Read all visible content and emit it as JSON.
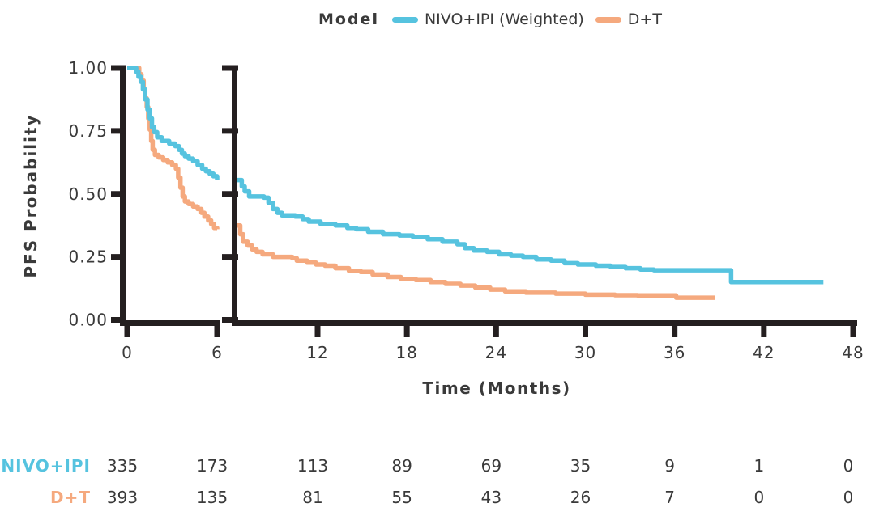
{
  "legend": {
    "title": "Model",
    "position": "top-center"
  },
  "chart_data": {
    "type": "line",
    "subtype": "kaplan-meier-step-curve-with-broken-x-axis",
    "title": "",
    "xlabel": "Time (Months)",
    "ylabel": "PFS Probability",
    "x_ticks": [
      0,
      6,
      12,
      18,
      24,
      30,
      36,
      42,
      48
    ],
    "y_tick_labels": [
      "1.00",
      "0.75",
      "0.50",
      "0.25",
      "0.00"
    ],
    "y_tick_values": [
      1.0,
      0.75,
      0.5,
      0.25,
      0.0
    ],
    "xlim": [
      0,
      48
    ],
    "ylim": [
      0,
      1
    ],
    "x_axis_break": {
      "between": [
        6,
        6.5
      ]
    },
    "grid": "off",
    "axis_color": "#241f20",
    "text_color": "#3a3a3a",
    "series": [
      {
        "name": "NIVO+IPI (Weighted)",
        "color": "#56C3DF",
        "segments": [
          [
            [
              0,
              1.0
            ],
            [
              0.45,
              1.0
            ],
            [
              0.6,
              0.985
            ],
            [
              0.75,
              0.965
            ],
            [
              0.9,
              0.945
            ],
            [
              1.05,
              0.915
            ],
            [
              1.2,
              0.875
            ],
            [
              1.35,
              0.835
            ],
            [
              1.5,
              0.8
            ],
            [
              1.65,
              0.765
            ],
            [
              1.8,
              0.745
            ],
            [
              2.0,
              0.725
            ],
            [
              2.3,
              0.71
            ],
            [
              2.8,
              0.7
            ],
            [
              3.2,
              0.69
            ],
            [
              3.45,
              0.675
            ],
            [
              3.65,
              0.66
            ],
            [
              3.85,
              0.65
            ],
            [
              4.1,
              0.64
            ],
            [
              4.4,
              0.63
            ],
            [
              4.7,
              0.615
            ],
            [
              5.0,
              0.6
            ],
            [
              5.25,
              0.59
            ],
            [
              5.5,
              0.58
            ],
            [
              5.75,
              0.57
            ],
            [
              6.0,
              0.555
            ]
          ],
          [
            [
              6.6,
              0.555
            ],
            [
              6.9,
              0.53
            ],
            [
              7.1,
              0.51
            ],
            [
              7.4,
              0.49
            ],
            [
              8.4,
              0.485
            ],
            [
              8.7,
              0.465
            ],
            [
              9.0,
              0.44
            ],
            [
              9.3,
              0.425
            ],
            [
              9.6,
              0.415
            ],
            [
              10.5,
              0.41
            ],
            [
              11.0,
              0.4
            ],
            [
              11.4,
              0.39
            ],
            [
              12.2,
              0.38
            ],
            [
              13.2,
              0.375
            ],
            [
              14.0,
              0.365
            ],
            [
              14.6,
              0.36
            ],
            [
              15.4,
              0.35
            ],
            [
              16.4,
              0.34
            ],
            [
              17.5,
              0.335
            ],
            [
              18.4,
              0.33
            ],
            [
              19.4,
              0.32
            ],
            [
              20.4,
              0.31
            ],
            [
              21.4,
              0.3
            ],
            [
              21.9,
              0.285
            ],
            [
              22.5,
              0.275
            ],
            [
              23.4,
              0.27
            ],
            [
              24.2,
              0.26
            ],
            [
              25.0,
              0.255
            ],
            [
              25.8,
              0.25
            ],
            [
              26.7,
              0.24
            ],
            [
              27.7,
              0.235
            ],
            [
              28.6,
              0.225
            ],
            [
              29.5,
              0.22
            ],
            [
              30.7,
              0.215
            ],
            [
              31.7,
              0.21
            ],
            [
              32.7,
              0.205
            ],
            [
              33.7,
              0.2
            ],
            [
              34.6,
              0.197
            ],
            [
              39.7,
              0.197
            ],
            [
              39.8,
              0.15
            ],
            [
              46.0,
              0.15
            ]
          ]
        ]
      },
      {
        "name": "D+T",
        "color": "#F5A97E",
        "segments": [
          [
            [
              0,
              1.0
            ],
            [
              0.55,
              1.0
            ],
            [
              0.8,
              0.975
            ],
            [
              0.95,
              0.95
            ],
            [
              1.1,
              0.915
            ],
            [
              1.2,
              0.88
            ],
            [
              1.3,
              0.845
            ],
            [
              1.4,
              0.8
            ],
            [
              1.5,
              0.755
            ],
            [
              1.6,
              0.71
            ],
            [
              1.7,
              0.675
            ],
            [
              1.85,
              0.655
            ],
            [
              2.1,
              0.645
            ],
            [
              2.4,
              0.635
            ],
            [
              2.7,
              0.625
            ],
            [
              3.0,
              0.615
            ],
            [
              3.25,
              0.6
            ],
            [
              3.4,
              0.565
            ],
            [
              3.55,
              0.525
            ],
            [
              3.7,
              0.49
            ],
            [
              3.85,
              0.47
            ],
            [
              4.1,
              0.46
            ],
            [
              4.4,
              0.45
            ],
            [
              4.7,
              0.44
            ],
            [
              4.95,
              0.425
            ],
            [
              5.15,
              0.41
            ],
            [
              5.4,
              0.395
            ],
            [
              5.6,
              0.38
            ],
            [
              5.8,
              0.365
            ],
            [
              6.0,
              0.36
            ]
          ],
          [
            [
              6.6,
              0.375
            ],
            [
              6.8,
              0.34
            ],
            [
              7.0,
              0.31
            ],
            [
              7.3,
              0.295
            ],
            [
              7.6,
              0.28
            ],
            [
              7.9,
              0.27
            ],
            [
              8.3,
              0.26
            ],
            [
              9.0,
              0.25
            ],
            [
              10.3,
              0.245
            ],
            [
              10.6,
              0.235
            ],
            [
              11.3,
              0.227
            ],
            [
              11.9,
              0.22
            ],
            [
              12.5,
              0.215
            ],
            [
              13.2,
              0.205
            ],
            [
              14.1,
              0.195
            ],
            [
              14.9,
              0.19
            ],
            [
              15.7,
              0.18
            ],
            [
              16.7,
              0.17
            ],
            [
              17.6,
              0.163
            ],
            [
              18.6,
              0.158
            ],
            [
              19.6,
              0.15
            ],
            [
              20.6,
              0.143
            ],
            [
              21.6,
              0.136
            ],
            [
              22.6,
              0.128
            ],
            [
              23.6,
              0.12
            ],
            [
              24.6,
              0.113
            ],
            [
              26.0,
              0.108
            ],
            [
              28.0,
              0.104
            ],
            [
              30.0,
              0.1
            ],
            [
              32.0,
              0.098
            ],
            [
              33.5,
              0.097
            ],
            [
              35.9,
              0.097
            ],
            [
              36.1,
              0.088
            ],
            [
              38.7,
              0.088
            ]
          ]
        ]
      }
    ]
  },
  "risk_table": {
    "columns_months": [
      0,
      6,
      12,
      18,
      24,
      30,
      36,
      42,
      48
    ],
    "rows": [
      {
        "label": "NIVO+IPI",
        "color": "#56C3DF",
        "values": [
          "335",
          "173",
          "113",
          "89",
          "69",
          "35",
          "9",
          "1",
          "0"
        ]
      },
      {
        "label": "D+T",
        "color": "#F5A97E",
        "values": [
          "393",
          "135",
          "81",
          "55",
          "43",
          "26",
          "7",
          "0",
          "0"
        ]
      }
    ]
  }
}
